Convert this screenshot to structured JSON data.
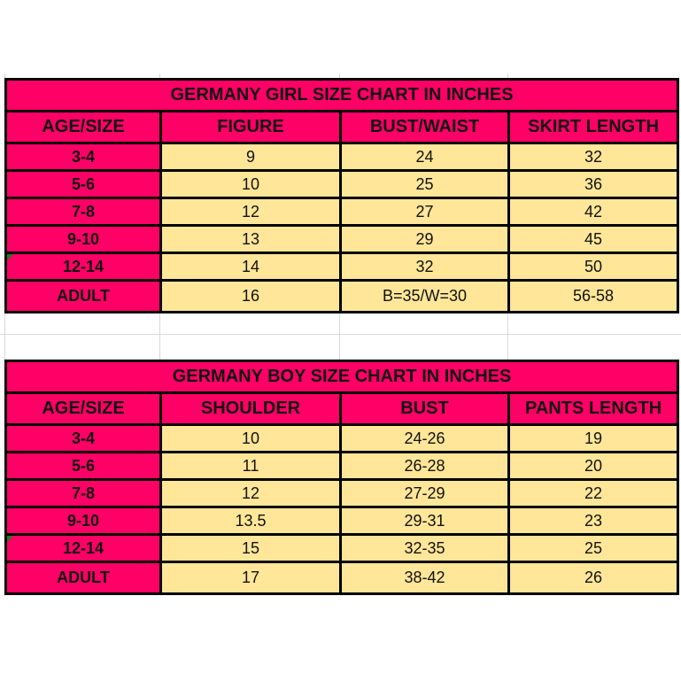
{
  "girl_chart": {
    "title": "GERMANY GIRL SIZE CHART IN INCHES",
    "headers": [
      "AGE/SIZE",
      "FIGURE",
      "BUST/WAIST",
      "SKIRT LENGTH"
    ],
    "rows": [
      [
        "3-4",
        "9",
        "24",
        "32"
      ],
      [
        "5-6",
        "10",
        "25",
        "36"
      ],
      [
        "7-8",
        "12",
        "27",
        "42"
      ],
      [
        "9-10",
        "13",
        "29",
        "45"
      ],
      [
        "12-14",
        "14",
        "32",
        "50"
      ],
      [
        "ADULT",
        "16",
        "B=35/W=30",
        "56-58"
      ]
    ]
  },
  "boy_chart": {
    "title": "GERMANY BOY SIZE CHART IN INCHES",
    "headers": [
      "AGE/SIZE",
      "SHOULDER",
      "BUST",
      "PANTS LENGTH"
    ],
    "rows": [
      [
        "3-4",
        "10",
        "24-26",
        "19"
      ],
      [
        "5-6",
        "11",
        "26-28",
        "20"
      ],
      [
        "7-8",
        "12",
        "27-29",
        "22"
      ],
      [
        "9-10",
        "13.5",
        "29-31",
        "23"
      ],
      [
        "12-14",
        "15",
        "32-35",
        "25"
      ],
      [
        "ADULT",
        "17",
        "38-42",
        "26"
      ]
    ]
  },
  "colors": {
    "header_bg": "#ff0066",
    "cell_bg": "#ffe699",
    "border": "#000000",
    "comment_marker": "#1a7f1a"
  }
}
